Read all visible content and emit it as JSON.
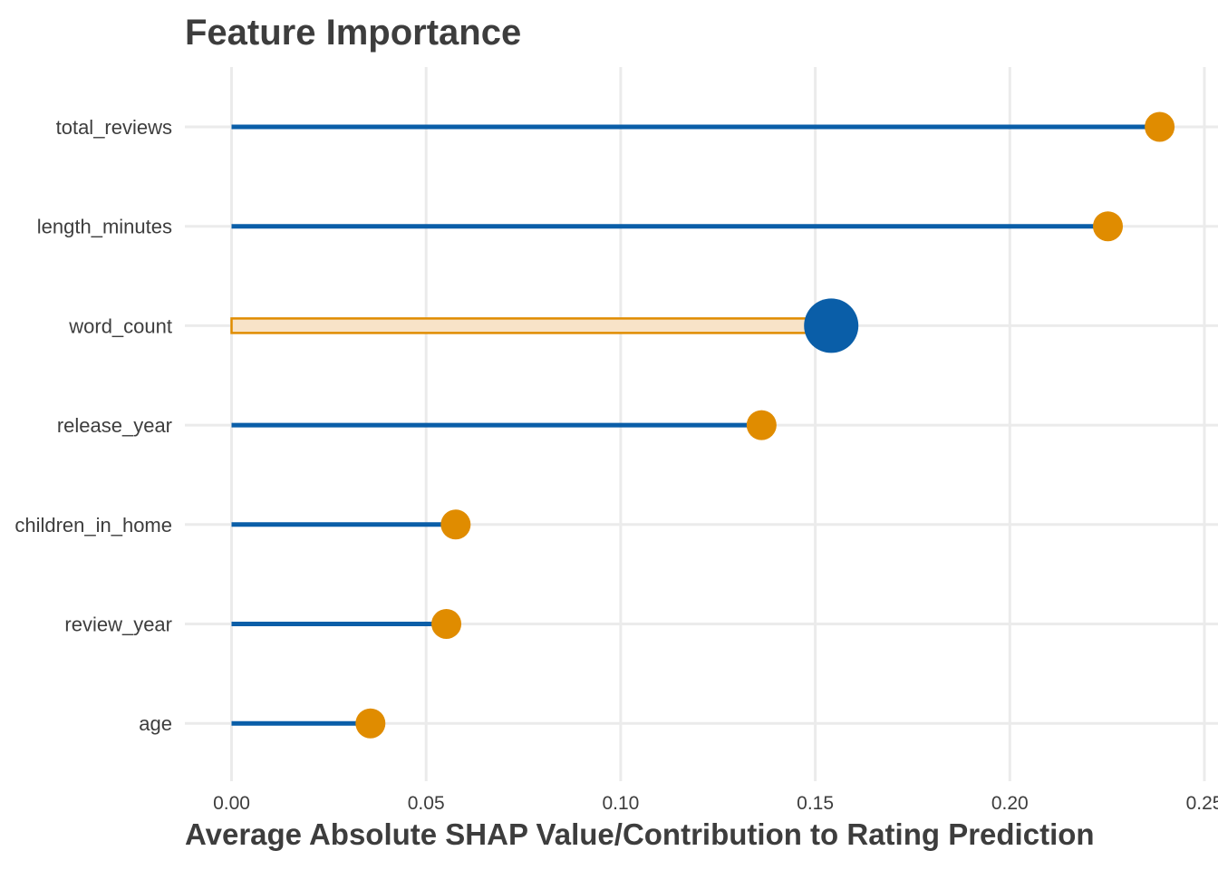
{
  "chart_data": {
    "type": "lollipop",
    "title": "Feature Importance",
    "xlabel": "Average Absolute SHAP Value/Contribution to Rating Prediction",
    "ylabel": "",
    "xlim": [
      -0.012,
      0.25
    ],
    "xticks": [
      0.0,
      0.05,
      0.1,
      0.15,
      0.2,
      0.25
    ],
    "xtick_labels": [
      "0.00",
      "0.05",
      "0.10",
      "0.15",
      "0.20",
      "0.25"
    ],
    "grid": true,
    "legend": "none",
    "highlighted_category": "word_count",
    "categories": [
      "total_reviews",
      "length_minutes",
      "word_count",
      "release_year",
      "children_in_home",
      "review_year",
      "age"
    ],
    "values": [
      0.2385,
      0.2252,
      0.1541,
      0.1362,
      0.0576,
      0.0552,
      0.0357
    ],
    "colors": {
      "stem": "#0a5ea8",
      "point": "#e08c00",
      "highlight_point": "#0a5ea8",
      "highlight_bar_fill": "#f8e3c8",
      "highlight_bar_stroke": "#e08c00",
      "grid": "#ebebeb",
      "text": "#3d3d3d"
    }
  }
}
